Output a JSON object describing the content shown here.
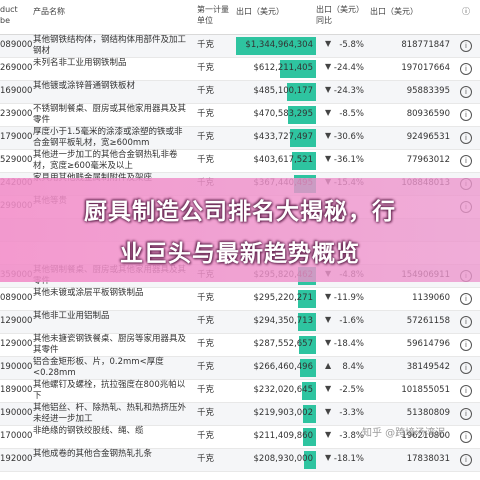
{
  "header": {
    "code": "duct\nbe",
    "name": "产品名称",
    "unit": "第一计量单位",
    "value": "出口（美元）",
    "change": "出口（美元）同比",
    "prev": "出口（美元）",
    "info": "ⓘ"
  },
  "rows": [
    {
      "code": "089000",
      "name": "其他钢铁结构体，钢结构体用部件及加工钢材",
      "unit": "千克",
      "value": "$1,344,964,304",
      "share": 1.0,
      "dir": "down",
      "change": "-5.8%",
      "prev": "818771847"
    },
    {
      "code": "269000",
      "name": "未列名非工业用钢铁制品",
      "unit": "千克",
      "value": "$612,211,405",
      "share": 0.455,
      "dir": "down",
      "change": "-24.4%",
      "prev": "197017664"
    },
    {
      "code": "169000",
      "name": "其他镀或涂锌普通钢铁板材",
      "unit": "千克",
      "value": "$485,100,177",
      "share": 0.36,
      "dir": "down",
      "change": "-24.3%",
      "prev": "95883395"
    },
    {
      "code": "239000",
      "name": "不锈钢制餐桌、厨房或其他家用器具及其零件",
      "unit": "千克",
      "value": "$470,583,295",
      "share": 0.35,
      "dir": "down",
      "change": "-8.5%",
      "prev": "80936590"
    },
    {
      "code": "179000",
      "name": "厚度小于1.5毫米的涂漆或涂塑的铁或非合金钢平板轧材，宽≥600mm",
      "unit": "千克",
      "value": "$433,727,497",
      "share": 0.322,
      "dir": "down",
      "change": "-30.6%",
      "prev": "92496531"
    },
    {
      "code": "529000",
      "name": "其他进一步加工的其他合金钢热轧非卷材，宽度≥600毫米及以上",
      "unit": "千克",
      "value": "$403,617,521",
      "share": 0.3,
      "dir": "down",
      "change": "-36.1%",
      "prev": "77963012"
    },
    {
      "code": "242000",
      "name": "家具用其他贱金属制附件及架座",
      "unit": "千克",
      "value": "$367,440,495",
      "share": 0.273,
      "dir": "down",
      "change": "-15.4%",
      "prev": "108848013"
    },
    {
      "code": "299000",
      "name": "其他等贵",
      "unit": "",
      "value": "",
      "share": 0,
      "dir": "",
      "change": "",
      "prev": ""
    },
    {
      "code": "",
      "name": "",
      "unit": "",
      "value": "",
      "share": 0,
      "dir": "",
      "change": "",
      "prev": ""
    },
    {
      "code": "",
      "name": "",
      "unit": "",
      "value": "",
      "share": 0,
      "dir": "",
      "change": "",
      "prev": ""
    },
    {
      "code": "359000",
      "name": "其他钢制餐桌、厨房或其他家用器具及其零件",
      "unit": "千克",
      "value": "$295,820,462",
      "share": 0.22,
      "dir": "down",
      "change": "-4.8%",
      "prev": "154906911"
    },
    {
      "code": "089000",
      "name": "其他未镀或涂层平板钢铁制品",
      "unit": "千克",
      "value": "$295,220,271",
      "share": 0.219,
      "dir": "down",
      "change": "-11.9%",
      "prev": "1139060"
    },
    {
      "code": "129000",
      "name": "其他非工业用铝制品",
      "unit": "千克",
      "value": "$294,350,713",
      "share": 0.219,
      "dir": "down",
      "change": "-1.6%",
      "prev": "57261158"
    },
    {
      "code": "129000",
      "name": "其他未搪瓷钢铁餐桌、厨房等家用器具及其零件",
      "unit": "千克",
      "value": "$287,552,657",
      "share": 0.214,
      "dir": "down",
      "change": "-18.4%",
      "prev": "59614796"
    },
    {
      "code": "190000",
      "name": "铝合金矩形板、片，0.2mm<厚度<0.28mm",
      "unit": "千克",
      "value": "$266,460,496",
      "share": 0.198,
      "dir": "up",
      "change": "8.4%",
      "prev": "38149542"
    },
    {
      "code": "189000",
      "name": "其他螺钉及螺栓，抗拉强度在800兆帕以下",
      "unit": "千克",
      "value": "$232,020,645",
      "share": 0.172,
      "dir": "down",
      "change": "-2.5%",
      "prev": "101855051"
    },
    {
      "code": "190000",
      "name": "其他铝丝、杆、除热轧、热轧和热挤压外未经进一步加工",
      "unit": "千克",
      "value": "$219,903,002",
      "share": 0.163,
      "dir": "down",
      "change": "-3.3%",
      "prev": "51380809"
    },
    {
      "code": "170000",
      "name": "非绝缘的钢铁绞股线、绳、缆",
      "unit": "千克",
      "value": "$211,409,860",
      "share": 0.157,
      "dir": "down",
      "change": "-3.8%",
      "prev": "196210800"
    },
    {
      "code": "192000",
      "name": "其他成卷的其他合金钢热轧扎条",
      "unit": "千克",
      "value": "$208,930,000",
      "share": 0.155,
      "dir": "down",
      "change": "-18.1%",
      "prev": "17838031"
    }
  ],
  "overlay": {
    "line1": "厨具制造公司排名大揭秘，行",
    "line2": "业巨头与最新趋势概览"
  },
  "watermark": "知乎 @跨境汤湾泥"
}
